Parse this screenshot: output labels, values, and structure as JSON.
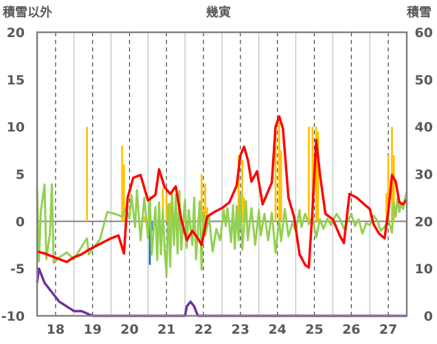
{
  "chart_data": {
    "type": "line",
    "title": "幾寅",
    "ylabel_left": "積雪以外",
    "ylabel_right": "積雪",
    "ylim_left": [
      -10,
      20
    ],
    "ylim_right": [
      0,
      60
    ],
    "y_ticks_left": [
      "20",
      "15",
      "10",
      "5",
      "0",
      "-5",
      "-10"
    ],
    "y_ticks_right": [
      "60",
      "50",
      "40",
      "30",
      "20",
      "10",
      "0"
    ],
    "x_ticks": [
      "18",
      "19",
      "20",
      "21",
      "22",
      "23",
      "24",
      "25",
      "26",
      "27"
    ],
    "xlim": [
      17.5,
      27.5
    ],
    "grid": "vertical dashed at day midpoints",
    "colors": {
      "red_line": "#ff0000",
      "green_line": "#92d050",
      "orange_bars": "#ffc000",
      "blue_bars": "#0070c0",
      "purple_line": "#7030a0",
      "axis": "#808080"
    },
    "series_red": [
      [
        17.5,
        -3.2
      ],
      [
        17.7,
        -3.4
      ],
      [
        17.9,
        -3.7
      ],
      [
        18.1,
        -4.0
      ],
      [
        18.3,
        -4.3
      ],
      [
        18.5,
        -3.8
      ],
      [
        18.7,
        -3.5
      ],
      [
        18.9,
        -3.0
      ],
      [
        19.1,
        -2.6
      ],
      [
        19.3,
        -2.2
      ],
      [
        19.5,
        -1.8
      ],
      [
        19.7,
        -1.5
      ],
      [
        19.85,
        -3.4
      ],
      [
        19.95,
        2.5
      ],
      [
        20.1,
        4.6
      ],
      [
        20.3,
        4.9
      ],
      [
        20.5,
        2.2
      ],
      [
        20.7,
        2.8
      ],
      [
        20.8,
        5.5
      ],
      [
        20.95,
        3.6
      ],
      [
        21.1,
        2.9
      ],
      [
        21.25,
        3.7
      ],
      [
        21.4,
        0.2
      ],
      [
        21.55,
        -2.0
      ],
      [
        21.7,
        -1.0
      ],
      [
        21.85,
        -1.8
      ],
      [
        21.95,
        -2.5
      ],
      [
        22.1,
        0.5
      ],
      [
        22.3,
        1.0
      ],
      [
        22.5,
        1.4
      ],
      [
        22.7,
        2.0
      ],
      [
        22.9,
        3.8
      ],
      [
        23.0,
        7.0
      ],
      [
        23.1,
        7.9
      ],
      [
        23.2,
        6.5
      ],
      [
        23.3,
        4.2
      ],
      [
        23.45,
        5.3
      ],
      [
        23.6,
        1.8
      ],
      [
        23.75,
        3.2
      ],
      [
        23.85,
        4.1
      ],
      [
        23.95,
        10.0
      ],
      [
        24.05,
        11.1
      ],
      [
        24.15,
        9.8
      ],
      [
        24.3,
        2.5
      ],
      [
        24.45,
        0.5
      ],
      [
        24.6,
        -3.5
      ],
      [
        24.75,
        -4.6
      ],
      [
        24.85,
        -4.9
      ],
      [
        24.95,
        1.2
      ],
      [
        25.05,
        8.6
      ],
      [
        25.15,
        5.0
      ],
      [
        25.3,
        0.8
      ],
      [
        25.5,
        0.2
      ],
      [
        25.7,
        -1.6
      ],
      [
        25.8,
        -2.3
      ],
      [
        25.95,
        2.9
      ],
      [
        26.15,
        2.5
      ],
      [
        26.35,
        1.8
      ],
      [
        26.5,
        1.3
      ],
      [
        26.6,
        -0.3
      ],
      [
        26.75,
        -1.3
      ],
      [
        26.9,
        -1.8
      ],
      [
        27.0,
        1.0
      ],
      [
        27.1,
        4.9
      ],
      [
        27.2,
        4.2
      ],
      [
        27.3,
        2.0
      ],
      [
        27.4,
        1.8
      ],
      [
        27.5,
        2.3
      ]
    ],
    "series_green": [
      [
        17.5,
        3.6
      ],
      [
        17.55,
        -4.2
      ],
      [
        17.6,
        1.0
      ],
      [
        17.7,
        3.9
      ],
      [
        17.75,
        -4.0
      ],
      [
        17.85,
        -1.2
      ],
      [
        17.9,
        3.9
      ],
      [
        17.95,
        -4.4
      ],
      [
        18.1,
        -3.8
      ],
      [
        18.3,
        -3.3
      ],
      [
        18.5,
        -4.0
      ],
      [
        18.7,
        -2.7
      ],
      [
        18.85,
        -1.8
      ],
      [
        18.9,
        -3.5
      ],
      [
        19.0,
        -2.9
      ],
      [
        19.2,
        -1.9
      ],
      [
        19.4,
        1.0
      ],
      [
        19.6,
        0.8
      ],
      [
        19.8,
        0.5
      ],
      [
        19.9,
        1.4
      ],
      [
        20.0,
        0.3
      ],
      [
        20.05,
        2.8
      ],
      [
        20.15,
        -0.6
      ],
      [
        20.2,
        3.3
      ],
      [
        20.3,
        -2.0
      ],
      [
        20.4,
        2.5
      ],
      [
        20.5,
        -1.8
      ],
      [
        20.55,
        2.6
      ],
      [
        20.6,
        -3.5
      ],
      [
        20.7,
        1.5
      ],
      [
        20.75,
        -4.1
      ],
      [
        20.8,
        2.0
      ],
      [
        20.85,
        -3.5
      ],
      [
        20.9,
        1.2
      ],
      [
        20.95,
        -3.0
      ],
      [
        21.0,
        -5.7
      ],
      [
        21.05,
        1.8
      ],
      [
        21.1,
        -4.8
      ],
      [
        21.15,
        3.0
      ],
      [
        21.2,
        -2.5
      ],
      [
        21.25,
        2.8
      ],
      [
        21.3,
        -3.4
      ],
      [
        21.35,
        3.2
      ],
      [
        21.4,
        -3.0
      ],
      [
        21.5,
        2.3
      ],
      [
        21.55,
        -2.8
      ],
      [
        21.6,
        1.2
      ],
      [
        21.7,
        -2.5
      ],
      [
        21.75,
        2.5
      ],
      [
        21.8,
        -4.0
      ],
      [
        21.9,
        2.1
      ],
      [
        21.95,
        -5.1
      ],
      [
        22.0,
        1.0
      ],
      [
        22.05,
        -1.5
      ],
      [
        22.15,
        0.5
      ],
      [
        22.25,
        -3.2
      ],
      [
        22.35,
        -0.8
      ],
      [
        22.45,
        -2.0
      ],
      [
        22.55,
        1.2
      ],
      [
        22.6,
        -0.5
      ],
      [
        22.65,
        1.4
      ],
      [
        22.75,
        -2.2
      ],
      [
        22.8,
        1.7
      ],
      [
        22.85,
        -2.9
      ],
      [
        22.9,
        1.6
      ],
      [
        22.95,
        -2.0
      ],
      [
        23.0,
        2.7
      ],
      [
        23.05,
        -3.0
      ],
      [
        23.15,
        2.1
      ],
      [
        23.2,
        -2.0
      ],
      [
        23.3,
        1.4
      ],
      [
        23.4,
        -2.5
      ],
      [
        23.5,
        1.2
      ],
      [
        23.55,
        -1.5
      ],
      [
        23.65,
        0.8
      ],
      [
        23.75,
        -2.0
      ],
      [
        23.85,
        0.9
      ],
      [
        23.95,
        -3.3
      ],
      [
        24.05,
        0.2
      ],
      [
        24.1,
        -2.1
      ],
      [
        24.2,
        1.3
      ],
      [
        24.3,
        -1.6
      ],
      [
        24.4,
        -0.2
      ],
      [
        24.5,
        -1.0
      ],
      [
        24.6,
        1.2
      ],
      [
        24.65,
        -0.6
      ],
      [
        24.75,
        0.8
      ],
      [
        24.85,
        -0.3
      ],
      [
        24.95,
        0.5
      ],
      [
        25.05,
        -1.7
      ],
      [
        25.15,
        0.2
      ],
      [
        25.25,
        -0.8
      ],
      [
        25.35,
        0.3
      ],
      [
        25.45,
        -0.4
      ],
      [
        25.6,
        0.8
      ],
      [
        25.7,
        0.2
      ],
      [
        25.8,
        -0.8
      ],
      [
        25.9,
        0.0
      ],
      [
        26.0,
        0.8
      ],
      [
        26.1,
        -0.5
      ],
      [
        26.2,
        0.2
      ],
      [
        26.3,
        -1.3
      ],
      [
        26.4,
        -0.2
      ],
      [
        26.5,
        -0.4
      ],
      [
        26.6,
        0.6
      ],
      [
        26.7,
        0.1
      ],
      [
        26.8,
        -1.0
      ],
      [
        26.9,
        -0.6
      ],
      [
        27.0,
        0.2
      ],
      [
        27.1,
        -1.2
      ],
      [
        27.15,
        2.0
      ],
      [
        27.2,
        0.5
      ],
      [
        27.25,
        2.4
      ],
      [
        27.3,
        1.0
      ],
      [
        27.35,
        2.0
      ],
      [
        27.4,
        1.3
      ],
      [
        27.45,
        2.4
      ],
      [
        27.5,
        3.1
      ]
    ],
    "series_purple": [
      [
        17.5,
        7
      ],
      [
        17.55,
        10
      ],
      [
        17.7,
        7
      ],
      [
        17.9,
        5
      ],
      [
        18.1,
        3
      ],
      [
        18.3,
        2
      ],
      [
        18.5,
        1
      ],
      [
        18.7,
        1
      ],
      [
        19.0,
        0
      ],
      [
        19.5,
        0
      ],
      [
        19.6,
        -1
      ],
      [
        20.2,
        -1
      ],
      [
        20.5,
        -1
      ],
      [
        21.0,
        -1
      ],
      [
        21.4,
        -1
      ],
      [
        21.5,
        -0.3
      ],
      [
        21.55,
        2
      ],
      [
        21.65,
        3
      ],
      [
        21.75,
        2
      ],
      [
        21.85,
        0
      ],
      [
        22.0,
        -1
      ],
      [
        27.5,
        -1
      ]
    ],
    "bars_orange": [
      [
        18.85,
        10
      ],
      [
        19.8,
        8
      ],
      [
        19.85,
        6
      ],
      [
        20.4,
        0.5
      ],
      [
        20.9,
        3.5
      ],
      [
        21.0,
        3
      ],
      [
        21.1,
        2
      ],
      [
        21.95,
        5
      ],
      [
        22.05,
        4
      ],
      [
        22.1,
        1.5
      ],
      [
        22.95,
        7
      ],
      [
        23.05,
        6.5
      ],
      [
        23.1,
        2.5
      ],
      [
        23.95,
        9.5
      ],
      [
        24.05,
        10.5
      ],
      [
        24.1,
        7.5
      ],
      [
        24.85,
        10
      ],
      [
        24.95,
        10
      ],
      [
        25.05,
        10
      ],
      [
        25.1,
        9.5
      ],
      [
        26.95,
        3
      ],
      [
        27.0,
        7
      ],
      [
        27.1,
        10
      ],
      [
        27.15,
        7
      ]
    ],
    "bars_blue": [
      [
        20.5,
        -1.5
      ],
      [
        20.55,
        -4.6
      ],
      [
        20.6,
        -1
      ],
      [
        21.25,
        -0.4
      ],
      [
        21.35,
        -0.5
      ],
      [
        21.55,
        -0.5
      ]
    ]
  }
}
